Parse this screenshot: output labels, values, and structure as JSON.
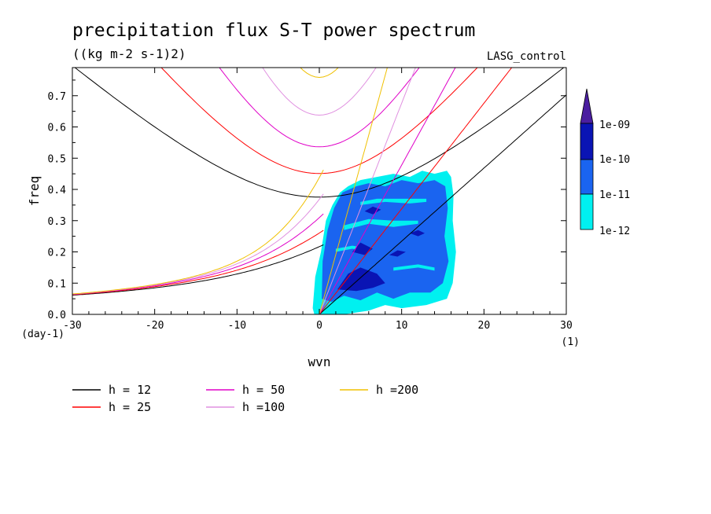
{
  "chart_data": {
    "type": "contour",
    "title": "precipitation flux S-T power spectrum",
    "units": "((kg m-2 s-1)2)",
    "run": "LASG_control",
    "xlabel": "wvn",
    "ylabel": "freq",
    "x_unit_label": "(1)",
    "y_unit_label": "(day-1)",
    "xlim": [
      -30,
      30
    ],
    "ylim": [
      0,
      0.79
    ],
    "x_ticks": [
      "-30",
      "-20",
      "-10",
      "0",
      "10",
      "20",
      "30"
    ],
    "y_ticks": [
      "0.0",
      "0.1",
      "0.2",
      "0.3",
      "0.4",
      "0.5",
      "0.6",
      "0.7"
    ],
    "colorbar": {
      "labels": [
        "1e-09",
        "1e-10",
        "1e-11",
        "1e-12"
      ],
      "colors": [
        "#4b1ea0",
        "#0a14b4",
        "#1a64f0",
        "#00f0f0"
      ]
    },
    "dispersion_curves": [
      {
        "name": "h = 12",
        "h": 12,
        "color": "#000000"
      },
      {
        "name": "h = 25",
        "h": 25,
        "color": "#ff0000"
      },
      {
        "name": "h = 50",
        "h": 50,
        "color": "#e000c8"
      },
      {
        "name": "h =100",
        "h": 100,
        "color": "#e090e0"
      },
      {
        "name": "h =200",
        "h": 200,
        "color": "#f0c000"
      }
    ]
  }
}
